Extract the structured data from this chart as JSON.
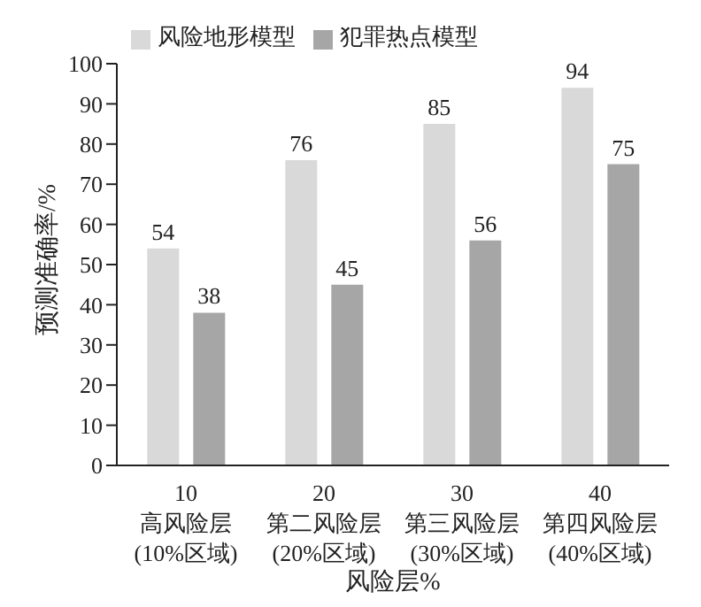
{
  "chart_data": {
    "type": "bar",
    "xlabel": "风险层%",
    "ylabel": "预测准确率/%",
    "categories": [
      "10\n高风险层\n(10%区域)",
      "20\n第二风险层\n(20%区域)",
      "30\n第三风险层\n(30%区域)",
      "40\n第四风险层\n(40%区域)"
    ],
    "series": [
      {
        "name": "风险地形模型",
        "color": "#d9d9d9",
        "values": [
          54,
          76,
          85,
          94
        ]
      },
      {
        "name": "犯罪热点模型",
        "color": "#a6a6a6",
        "values": [
          38,
          45,
          56,
          75
        ]
      }
    ],
    "ylim": [
      0,
      100
    ],
    "yticks": [
      0,
      10,
      20,
      30,
      40,
      50,
      60,
      70,
      80,
      90,
      100
    ],
    "data_labels": true,
    "legend": "top left",
    "grid": false
  }
}
